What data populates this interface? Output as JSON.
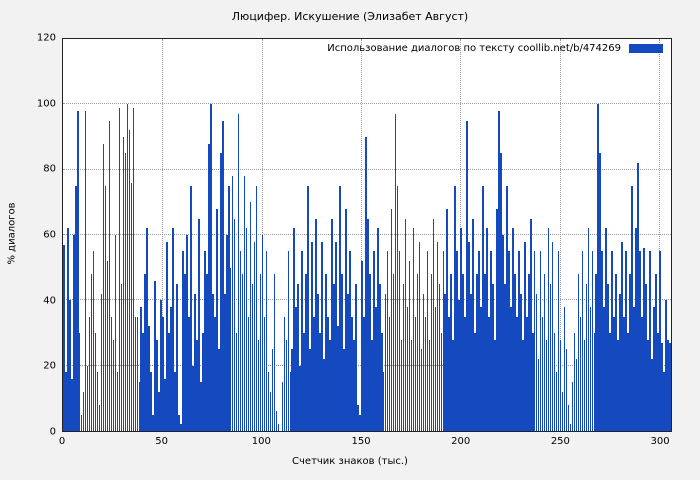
{
  "page": {
    "background_color": "#f2f2f2",
    "plot_background_color": "#ffffff",
    "grid_color": "#9a9a9a"
  },
  "chart_data": {
    "type": "bar",
    "title": "Люцифер. Искушение (Элизабет Август)",
    "legend": "Использование диалогов по тексту  coollib.net/b/474269",
    "legend_position": "top-right-inside",
    "xlabel": "Счетчик знаков (тыс.)",
    "ylabel": "% диалогов",
    "bar_color": "#1549c0",
    "grid": "dotted",
    "xlim": [
      0,
      306
    ],
    "ylim": [
      0,
      120
    ],
    "x_ticks": [
      0,
      50,
      100,
      150,
      200,
      250,
      300
    ],
    "y_ticks": [
      0,
      20,
      40,
      60,
      80,
      100,
      120
    ],
    "x_start": 0,
    "x_step": 1,
    "values": [
      57,
      18,
      62,
      40,
      16,
      60,
      75,
      98,
      30,
      5,
      12,
      98,
      20,
      35,
      48,
      55,
      30,
      18,
      8,
      42,
      88,
      75,
      52,
      95,
      35,
      28,
      60,
      18,
      99,
      45,
      90,
      85,
      100,
      92,
      76,
      99,
      35,
      35,
      15,
      38,
      30,
      48,
      62,
      32,
      18,
      5,
      46,
      28,
      12,
      40,
      35,
      16,
      58,
      30,
      38,
      62,
      18,
      45,
      5,
      2,
      55,
      48,
      60,
      35,
      75,
      20,
      42,
      28,
      65,
      15,
      30,
      55,
      48,
      88,
      100,
      42,
      35,
      68,
      25,
      85,
      95,
      42,
      60,
      75,
      50,
      78,
      65,
      30,
      97,
      55,
      48,
      78,
      62,
      35,
      70,
      45,
      58,
      75,
      28,
      48,
      60,
      35,
      55,
      18,
      12,
      25,
      48,
      6,
      2,
      0,
      15,
      35,
      28,
      55,
      18,
      25,
      62,
      38,
      45,
      20,
      55,
      30,
      48,
      75,
      25,
      58,
      35,
      65,
      42,
      30,
      58,
      22,
      48,
      35,
      28,
      65,
      45,
      58,
      32,
      75,
      48,
      25,
      68,
      42,
      55,
      35,
      28,
      45,
      8,
      5,
      52,
      35,
      90,
      65,
      48,
      28,
      55,
      38,
      62,
      45,
      30,
      18,
      42,
      55,
      35,
      68,
      48,
      97,
      75,
      55,
      28,
      45,
      65,
      38,
      52,
      28,
      62,
      35,
      48,
      58,
      25,
      42,
      35,
      55,
      28,
      48,
      65,
      38,
      58,
      45,
      30,
      55,
      42,
      68,
      35,
      48,
      28,
      75,
      55,
      40,
      62,
      48,
      35,
      95,
      58,
      42,
      65,
      30,
      48,
      55,
      38,
      75,
      48,
      62,
      35,
      55,
      45,
      28,
      68,
      98,
      85,
      60,
      45,
      75,
      55,
      38,
      62,
      48,
      35,
      55,
      42,
      28,
      58,
      35,
      48,
      65,
      30,
      55,
      42,
      22,
      55,
      35,
      48,
      28,
      62,
      45,
      58,
      30,
      18,
      55,
      28,
      12,
      38,
      25,
      8,
      2,
      15,
      30,
      22,
      48,
      35,
      55,
      28,
      45,
      62,
      38,
      55,
      30,
      48,
      100,
      85,
      55,
      38,
      62,
      45,
      30,
      55,
      35,
      48,
      28,
      42,
      58,
      35,
      55,
      30,
      48,
      75,
      38,
      62,
      82,
      55,
      35,
      56,
      45,
      28,
      55,
      22,
      38,
      48,
      30,
      55,
      27,
      18,
      40,
      28,
      27
    ]
  }
}
